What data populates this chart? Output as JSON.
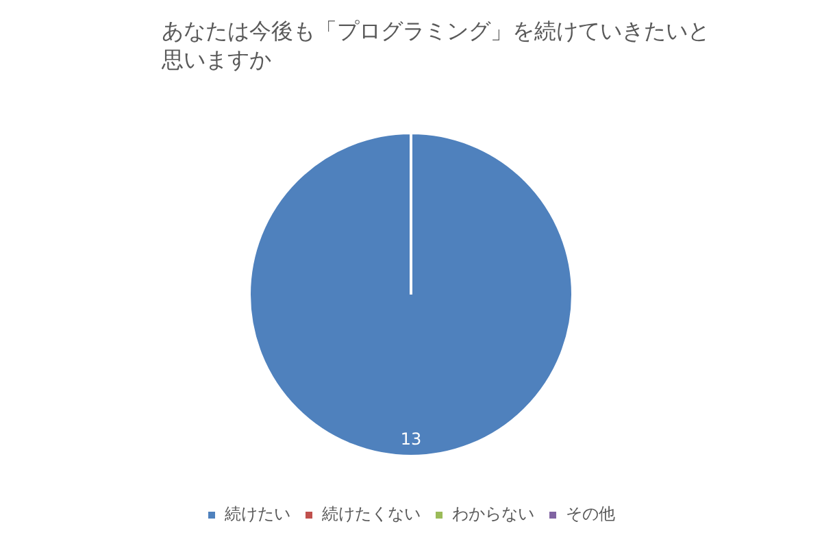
{
  "chart_data": {
    "type": "pie",
    "title": "あなたは今後も「プログラミング」を続けていきたいと思いますか",
    "categories": [
      "続けたい",
      "続けたくない",
      "わからない",
      "その他"
    ],
    "values": [
      13,
      0,
      0,
      0
    ],
    "colors": [
      "#4f81bd",
      "#c0504d",
      "#9bbb59",
      "#8064a2"
    ],
    "value_labels": [
      "13",
      null,
      null,
      null
    ],
    "legend": "bottom"
  }
}
